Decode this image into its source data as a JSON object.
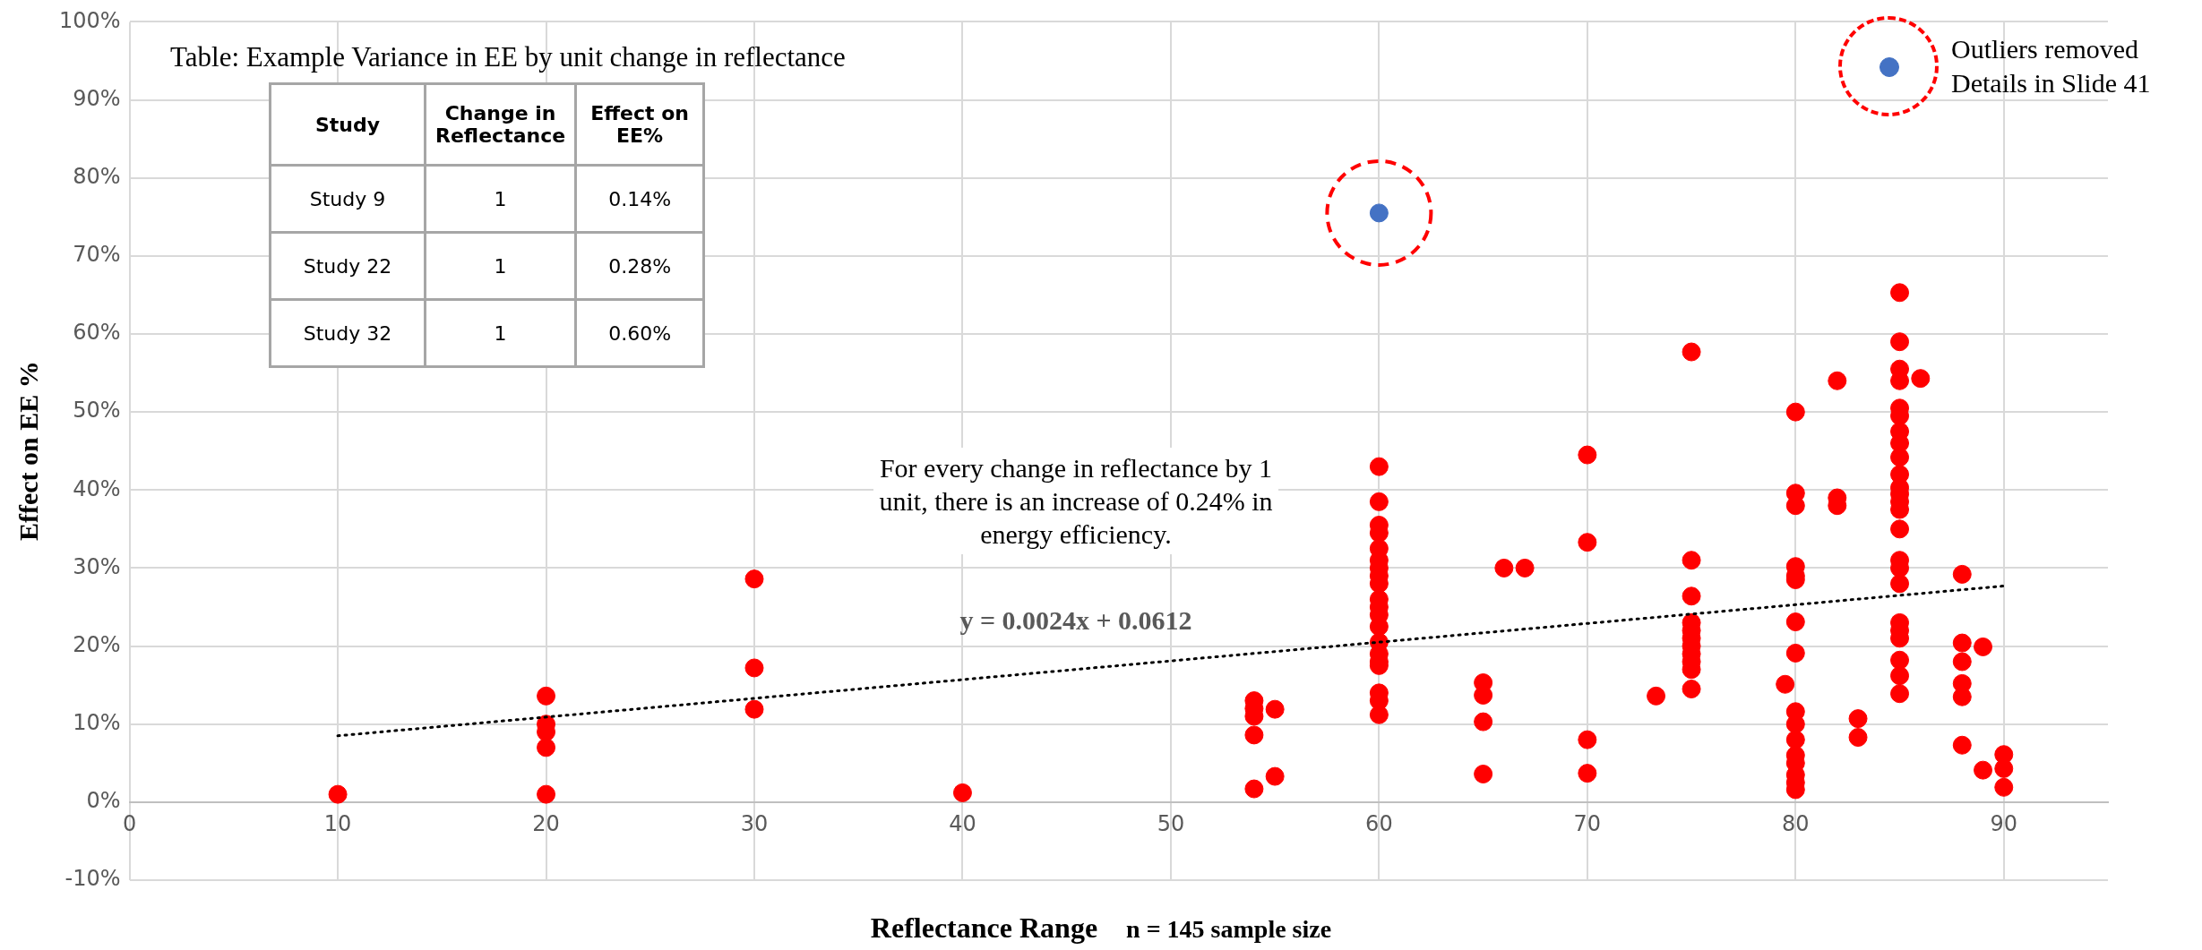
{
  "chart_data": {
    "type": "scatter",
    "ylabel": "Effect on EE %",
    "xlabel": "Reflectance Range",
    "xlim": [
      0,
      95
    ],
    "xticks": [
      0,
      10,
      20,
      30,
      40,
      50,
      60,
      70,
      80,
      90
    ],
    "ylim": [
      -10,
      100
    ],
    "yticks": [
      {
        "value": -10,
        "label": "-10%"
      },
      {
        "value": 0,
        "label": "0%"
      },
      {
        "value": 10,
        "label": "10%"
      },
      {
        "value": 20,
        "label": "20%"
      },
      {
        "value": 30,
        "label": "30%"
      },
      {
        "value": 40,
        "label": "40%"
      },
      {
        "value": 50,
        "label": "50%"
      },
      {
        "value": 60,
        "label": "60%"
      },
      {
        "value": 70,
        "label": "70%"
      },
      {
        "value": 80,
        "label": "80%"
      },
      {
        "value": 90,
        "label": "90%"
      },
      {
        "value": 100,
        "label": "100%"
      }
    ],
    "grid": true,
    "legend": "top right",
    "marker": "circle",
    "series": [
      {
        "color": "#ff0000",
        "x": [
          10,
          20,
          20,
          20,
          20,
          20,
          30,
          30,
          30,
          40,
          54,
          54,
          54,
          54,
          54,
          55,
          55,
          60,
          60,
          60,
          60,
          60,
          60,
          60,
          60,
          60,
          60,
          60,
          60,
          60,
          60,
          60,
          60,
          60,
          60,
          60,
          60,
          65,
          65,
          65,
          65,
          66,
          67,
          70,
          70,
          70,
          70,
          73.3,
          75,
          75,
          75,
          75,
          75,
          75,
          75,
          75,
          75,
          75,
          75,
          79.5,
          80,
          80,
          80,
          80,
          80,
          80,
          80,
          80,
          80,
          80,
          80,
          80,
          80,
          80,
          80,
          80,
          82,
          82,
          82,
          83,
          83,
          85,
          85,
          85,
          85,
          85,
          85,
          85,
          85,
          85,
          85,
          85,
          85,
          85,
          85,
          85,
          85,
          85,
          85,
          85,
          85,
          85,
          85,
          85,
          85,
          86,
          88,
          88,
          88,
          88,
          88,
          88,
          89,
          89,
          90,
          90,
          90
        ],
        "values": [
          1,
          13.6,
          10,
          9,
          7,
          1,
          28.6,
          17.2,
          11.9,
          1.2,
          13,
          12,
          11,
          8.6,
          1.7,
          11.9,
          3.3,
          43,
          38.5,
          35.5,
          34.5,
          32.5,
          31,
          30,
          29,
          28,
          26,
          25,
          24,
          22.5,
          20.5,
          19,
          18,
          17.5,
          14,
          13,
          11.2,
          15.3,
          13.7,
          10.3,
          3.6,
          30,
          30,
          44.5,
          33.3,
          8,
          3.7,
          13.6,
          57.7,
          31,
          26.4,
          23,
          22,
          21,
          20,
          19,
          18,
          17,
          14.5,
          15.1,
          50,
          39.6,
          38,
          30.2,
          29,
          28.5,
          23.1,
          19.1,
          11.6,
          10,
          8,
          6,
          5,
          3.5,
          2.5,
          1.6,
          54,
          39,
          38,
          10.7,
          8.3,
          65.3,
          59,
          55.5,
          54,
          50.5,
          49.5,
          47.5,
          46,
          44.2,
          42,
          40.3,
          39.5,
          38.5,
          37.5,
          35,
          31,
          30,
          28,
          23,
          22,
          21,
          18.2,
          16.2,
          13.9,
          54.3,
          29.2,
          20.4,
          18,
          15.2,
          13.5,
          7.3,
          19.9,
          4.1,
          6.1,
          4.3,
          1.9
        ]
      },
      {
        "name": "Outliers removed Details in Slide 41",
        "color": "#4472c4",
        "x": [
          60
        ],
        "values": [
          75.5
        ]
      },
      {
        "type": "line",
        "color": "#000000",
        "line_style": "dotted",
        "marker": "none",
        "x": [
          10,
          90
        ],
        "values": [
          8.5,
          27.7
        ]
      }
    ],
    "annotations": [
      "Table: Example Variance in EE by unit change in reflectance",
      "Study",
      "Change in Reflectance",
      "Effect on EE%",
      "Study 9",
      "1",
      "0.14%",
      "Study 22",
      "1",
      "0.28%",
      "Study 32",
      "1",
      "0.60%",
      "For every change in reflectance by 1 unit, there is an increase of 0.24% in energy efficiency.",
      "y = 0.0024x + 0.0612",
      "n = 145 sample size"
    ]
  }
}
